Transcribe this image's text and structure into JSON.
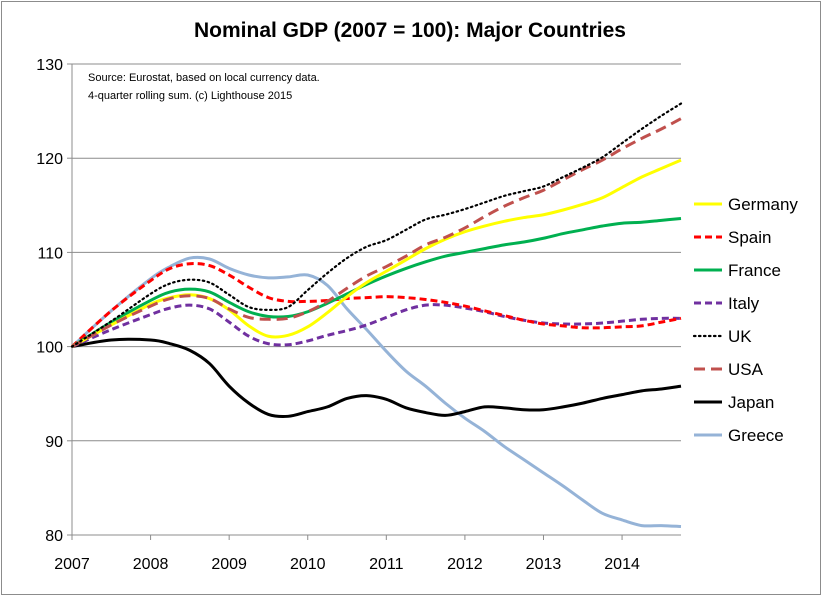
{
  "chart_data": {
    "type": "line",
    "title": "Nominal GDP (2007 = 100): Major Countries",
    "source_note": [
      "Source: Eurostat, based on local currency data.",
      "4-quarter rolling sum. (c) Lighthouse 2015"
    ],
    "xlabel": "",
    "ylabel": "",
    "xlim": [
      2007,
      2014.75
    ],
    "ylim": [
      80,
      130
    ],
    "x_ticks": [
      2007,
      2008,
      2009,
      2010,
      2011,
      2012,
      2013,
      2014
    ],
    "x_tick_labels": [
      "2007",
      "2008",
      "2009",
      "2010",
      "2011",
      "2012",
      "2013",
      "2014"
    ],
    "y_ticks": [
      80,
      90,
      100,
      110,
      120,
      130
    ],
    "y_tick_labels": [
      "80",
      "90",
      "100",
      "110",
      "120",
      "130"
    ],
    "grid": "horizontal",
    "legend_position": "right",
    "series": [
      {
        "name": "Germany",
        "color": "#ffff00",
        "dash": "solid",
        "x": [
          2007,
          2007.5,
          2008,
          2008.25,
          2008.5,
          2008.75,
          2009,
          2009.25,
          2009.5,
          2009.75,
          2010,
          2010.25,
          2010.5,
          2010.75,
          2011,
          2011.25,
          2011.5,
          2011.75,
          2012,
          2012.25,
          2012.5,
          2012.75,
          2013,
          2013.25,
          2013.5,
          2013.75,
          2014,
          2014.25,
          2014.5,
          2014.75
        ],
        "y": [
          100,
          102.3,
          104.5,
          105.2,
          105.5,
          105.1,
          103.9,
          102.2,
          101.1,
          101.2,
          102.1,
          103.6,
          105.3,
          106.8,
          108.0,
          109.2,
          110.4,
          111.4,
          112.2,
          112.8,
          113.3,
          113.7,
          114.0,
          114.5,
          115.1,
          115.8,
          116.9,
          118.0,
          118.9,
          119.8
        ]
      },
      {
        "name": "Spain",
        "color": "#ff0000",
        "dash": "dashed",
        "x": [
          2007,
          2007.5,
          2008,
          2008.25,
          2008.5,
          2008.75,
          2009,
          2009.25,
          2009.5,
          2009.75,
          2010,
          2010.25,
          2010.5,
          2010.75,
          2011,
          2011.25,
          2011.5,
          2011.75,
          2012,
          2012.25,
          2012.5,
          2012.75,
          2013,
          2013.25,
          2013.5,
          2013.75,
          2014,
          2014.25,
          2014.5,
          2014.75
        ],
        "y": [
          100,
          103.8,
          107.0,
          108.3,
          108.8,
          108.6,
          107.6,
          106.3,
          105.2,
          104.8,
          104.8,
          104.9,
          105.1,
          105.2,
          105.3,
          105.2,
          105.0,
          104.7,
          104.3,
          103.8,
          103.3,
          102.8,
          102.4,
          102.2,
          102.0,
          102.0,
          102.1,
          102.2,
          102.6,
          103.0
        ]
      },
      {
        "name": "France",
        "color": "#00b050",
        "dash": "solid",
        "x": [
          2007,
          2007.5,
          2008,
          2008.25,
          2008.5,
          2008.75,
          2009,
          2009.25,
          2009.5,
          2009.75,
          2010,
          2010.25,
          2010.5,
          2010.75,
          2011,
          2011.25,
          2011.5,
          2011.75,
          2012,
          2012.25,
          2012.5,
          2012.75,
          2013,
          2013.25,
          2013.5,
          2013.75,
          2014,
          2014.25,
          2014.5,
          2014.75
        ],
        "y": [
          100,
          102.6,
          104.9,
          105.8,
          106.1,
          105.8,
          104.7,
          103.7,
          103.2,
          103.2,
          103.7,
          104.6,
          105.6,
          106.6,
          107.5,
          108.3,
          109.0,
          109.6,
          110.0,
          110.4,
          110.8,
          111.1,
          111.5,
          112.0,
          112.4,
          112.8,
          113.1,
          113.2,
          113.4,
          113.6
        ]
      },
      {
        "name": "Italy",
        "color": "#7030a0",
        "dash": "dashed",
        "x": [
          2007,
          2007.5,
          2008,
          2008.25,
          2008.5,
          2008.75,
          2009,
          2009.25,
          2009.5,
          2009.75,
          2010,
          2010.25,
          2010.5,
          2010.75,
          2011,
          2011.25,
          2011.5,
          2011.75,
          2012,
          2012.25,
          2012.5,
          2012.75,
          2013,
          2013.25,
          2013.5,
          2013.75,
          2014,
          2014.25,
          2014.5,
          2014.75
        ],
        "y": [
          100,
          101.8,
          103.4,
          104.1,
          104.4,
          104.0,
          102.6,
          101.1,
          100.3,
          100.2,
          100.6,
          101.2,
          101.7,
          102.3,
          103.1,
          103.9,
          104.4,
          104.4,
          104.1,
          103.7,
          103.2,
          102.8,
          102.5,
          102.4,
          102.4,
          102.5,
          102.7,
          102.9,
          103.0,
          103.0
        ]
      },
      {
        "name": "UK",
        "color": "#000000",
        "dash": "dotted",
        "x": [
          2007,
          2007.5,
          2008,
          2008.25,
          2008.5,
          2008.75,
          2009,
          2009.25,
          2009.5,
          2009.75,
          2010,
          2010.25,
          2010.5,
          2010.75,
          2011,
          2011.25,
          2011.5,
          2011.75,
          2012,
          2012.25,
          2012.5,
          2012.75,
          2013,
          2013.25,
          2013.5,
          2013.75,
          2014,
          2014.25,
          2014.5,
          2014.75
        ],
        "y": [
          100,
          102.7,
          105.6,
          106.7,
          107.1,
          106.8,
          105.5,
          104.2,
          103.9,
          104.2,
          106.0,
          107.8,
          109.4,
          110.6,
          111.3,
          112.4,
          113.5,
          114.0,
          114.6,
          115.3,
          116.0,
          116.5,
          117.0,
          118.0,
          119.0,
          120.1,
          121.6,
          123.1,
          124.5,
          125.8
        ]
      },
      {
        "name": "USA",
        "color": "#c0504d",
        "dash": "longdash",
        "x": [
          2007,
          2007.5,
          2008,
          2008.25,
          2008.5,
          2008.75,
          2009,
          2009.25,
          2009.5,
          2009.75,
          2010,
          2010.25,
          2010.5,
          2010.75,
          2011,
          2011.25,
          2011.5,
          2011.75,
          2012,
          2012.25,
          2012.5,
          2012.75,
          2013,
          2013.25,
          2013.5,
          2013.75,
          2014,
          2014.25,
          2014.5,
          2014.75
        ],
        "y": [
          100,
          102.3,
          104.3,
          105.1,
          105.4,
          105.1,
          104.0,
          103.1,
          102.9,
          103.0,
          103.7,
          104.8,
          106.2,
          107.5,
          108.5,
          109.6,
          110.8,
          111.6,
          112.6,
          113.8,
          114.9,
          115.8,
          116.6,
          117.7,
          118.8,
          119.8,
          121.0,
          122.1,
          123.1,
          124.2
        ]
      },
      {
        "name": "Japan",
        "color": "#000000",
        "dash": "solid",
        "x": [
          2007,
          2007.5,
          2008,
          2008.25,
          2008.5,
          2008.75,
          2009,
          2009.25,
          2009.5,
          2009.75,
          2010,
          2010.25,
          2010.5,
          2010.75,
          2011,
          2011.25,
          2011.5,
          2011.75,
          2012,
          2012.25,
          2012.5,
          2012.75,
          2013,
          2013.25,
          2013.5,
          2013.75,
          2014,
          2014.25,
          2014.5,
          2014.75
        ],
        "y": [
          100,
          100.7,
          100.7,
          100.3,
          99.6,
          98.2,
          95.8,
          94.0,
          92.8,
          92.6,
          93.1,
          93.6,
          94.5,
          94.8,
          94.4,
          93.5,
          93.0,
          92.7,
          93.1,
          93.6,
          93.5,
          93.3,
          93.3,
          93.6,
          94.0,
          94.5,
          94.9,
          95.3,
          95.5,
          95.8
        ]
      },
      {
        "name": "Greece",
        "color": "#95b3d7",
        "dash": "solid",
        "x": [
          2007,
          2007.5,
          2008,
          2008.25,
          2008.5,
          2008.75,
          2009,
          2009.25,
          2009.5,
          2009.75,
          2010,
          2010.25,
          2010.5,
          2010.75,
          2011,
          2011.25,
          2011.5,
          2011.75,
          2012,
          2012.25,
          2012.5,
          2012.75,
          2013,
          2013.25,
          2013.5,
          2013.75,
          2014,
          2014.25,
          2014.5,
          2014.75
        ],
        "y": [
          100,
          103.8,
          107.2,
          108.5,
          109.4,
          109.3,
          108.3,
          107.6,
          107.3,
          107.4,
          107.6,
          106.5,
          104.0,
          101.8,
          99.5,
          97.4,
          95.8,
          94.0,
          92.4,
          91.0,
          89.4,
          88.0,
          86.6,
          85.2,
          83.7,
          82.3,
          81.6,
          81.0,
          81.0,
          80.9
        ]
      }
    ]
  }
}
